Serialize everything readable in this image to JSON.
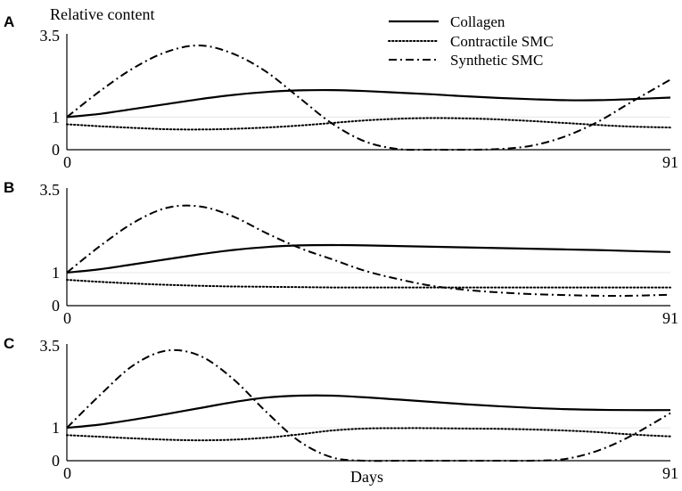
{
  "ylabel": "Relative content",
  "xlabel": "Days",
  "legend": {
    "position": "top-right",
    "entries": [
      {
        "name": "Collagen",
        "style": "solid"
      },
      {
        "name": "Contractile SMC",
        "style": "dotted"
      },
      {
        "name": "Synthetic SMC",
        "style": "dash-dot"
      }
    ]
  },
  "chart_data": [
    {
      "type": "line",
      "panel_label": "A",
      "x_ticks": [
        "0",
        "91"
      ],
      "y_ticks": [
        "0",
        "1",
        "3.5"
      ],
      "xlim": [
        0,
        91
      ],
      "ylim": [
        0,
        3.5
      ],
      "baseline": 1,
      "series": [
        {
          "name": "Collagen",
          "x": [
            0,
            5,
            10,
            15,
            20,
            25,
            30,
            35,
            40,
            45,
            50,
            55,
            60,
            65,
            70,
            75,
            80,
            85,
            91
          ],
          "values": [
            1.0,
            1.1,
            1.25,
            1.4,
            1.55,
            1.68,
            1.77,
            1.82,
            1.83,
            1.8,
            1.75,
            1.7,
            1.64,
            1.59,
            1.55,
            1.52,
            1.52,
            1.55,
            1.6
          ]
        },
        {
          "name": "Contractile SMC",
          "x": [
            0,
            5,
            10,
            15,
            20,
            25,
            30,
            35,
            40,
            45,
            50,
            55,
            60,
            65,
            70,
            75,
            80,
            85,
            91
          ],
          "values": [
            0.78,
            0.72,
            0.67,
            0.63,
            0.62,
            0.64,
            0.68,
            0.74,
            0.82,
            0.9,
            0.95,
            0.97,
            0.96,
            0.93,
            0.88,
            0.82,
            0.76,
            0.71,
            0.68
          ]
        },
        {
          "name": "Synthetic SMC",
          "x": [
            0,
            5,
            10,
            15,
            20,
            25,
            30,
            35,
            40,
            45,
            50,
            55,
            60,
            65,
            70,
            75,
            80,
            85,
            91
          ],
          "values": [
            1.0,
            1.8,
            2.5,
            3.0,
            3.2,
            2.95,
            2.4,
            1.6,
            0.8,
            0.25,
            0.02,
            0.0,
            0.0,
            0.02,
            0.12,
            0.4,
            0.85,
            1.45,
            2.15
          ]
        }
      ]
    },
    {
      "type": "line",
      "panel_label": "B",
      "x_ticks": [
        "0",
        "91"
      ],
      "y_ticks": [
        "0",
        "1",
        "3.5"
      ],
      "xlim": [
        0,
        91
      ],
      "ylim": [
        0,
        3.5
      ],
      "baseline": 1,
      "series": [
        {
          "name": "Collagen",
          "x": [
            0,
            5,
            10,
            15,
            20,
            25,
            30,
            35,
            40,
            45,
            50,
            55,
            60,
            65,
            70,
            75,
            80,
            85,
            91
          ],
          "values": [
            1.0,
            1.1,
            1.25,
            1.4,
            1.55,
            1.68,
            1.77,
            1.82,
            1.83,
            1.82,
            1.8,
            1.78,
            1.76,
            1.74,
            1.72,
            1.7,
            1.68,
            1.65,
            1.62
          ]
        },
        {
          "name": "Contractile SMC",
          "x": [
            0,
            5,
            10,
            15,
            20,
            25,
            30,
            35,
            40,
            45,
            50,
            55,
            60,
            65,
            70,
            75,
            80,
            85,
            91
          ],
          "values": [
            0.78,
            0.72,
            0.67,
            0.63,
            0.6,
            0.58,
            0.57,
            0.56,
            0.55,
            0.55,
            0.55,
            0.55,
            0.55,
            0.55,
            0.55,
            0.55,
            0.55,
            0.55,
            0.55
          ]
        },
        {
          "name": "Synthetic SMC",
          "x": [
            0,
            5,
            10,
            15,
            20,
            25,
            30,
            35,
            40,
            45,
            50,
            55,
            60,
            65,
            70,
            75,
            80,
            85,
            91
          ],
          "values": [
            1.0,
            1.8,
            2.5,
            2.95,
            3.0,
            2.7,
            2.2,
            1.75,
            1.4,
            1.05,
            0.8,
            0.6,
            0.48,
            0.4,
            0.35,
            0.32,
            0.3,
            0.3,
            0.33
          ]
        }
      ]
    },
    {
      "type": "line",
      "panel_label": "C",
      "x_ticks": [
        "0",
        "91"
      ],
      "y_ticks": [
        "0",
        "1",
        "3.5"
      ],
      "xlim": [
        0,
        91
      ],
      "ylim": [
        0,
        3.5
      ],
      "baseline": 1,
      "series": [
        {
          "name": "Collagen",
          "x": [
            0,
            5,
            10,
            15,
            20,
            25,
            30,
            35,
            40,
            45,
            50,
            55,
            60,
            65,
            70,
            75,
            80,
            85,
            91
          ],
          "values": [
            1.0,
            1.1,
            1.25,
            1.42,
            1.6,
            1.78,
            1.92,
            1.98,
            1.98,
            1.93,
            1.86,
            1.79,
            1.72,
            1.66,
            1.61,
            1.57,
            1.55,
            1.54,
            1.54
          ]
        },
        {
          "name": "Contractile SMC",
          "x": [
            0,
            5,
            10,
            15,
            20,
            25,
            30,
            35,
            40,
            45,
            50,
            55,
            60,
            65,
            70,
            75,
            80,
            85,
            91
          ],
          "values": [
            0.78,
            0.73,
            0.68,
            0.64,
            0.62,
            0.64,
            0.7,
            0.8,
            0.92,
            0.98,
            0.99,
            0.99,
            0.98,
            0.97,
            0.95,
            0.92,
            0.87,
            0.8,
            0.74
          ]
        },
        {
          "name": "Synthetic SMC",
          "x": [
            0,
            5,
            10,
            15,
            20,
            25,
            30,
            35,
            40,
            45,
            50,
            55,
            60,
            65,
            70,
            75,
            80,
            85,
            91
          ],
          "values": [
            1.0,
            2.0,
            2.9,
            3.35,
            3.2,
            2.5,
            1.5,
            0.6,
            0.1,
            0.0,
            0.0,
            0.0,
            0.0,
            0.0,
            0.0,
            0.05,
            0.3,
            0.75,
            1.45
          ]
        }
      ]
    }
  ]
}
